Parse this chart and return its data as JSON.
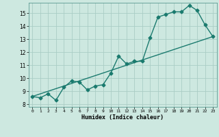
{
  "title": "",
  "xlabel": "Humidex (Indice chaleur)",
  "bg_color": "#cde8e0",
  "grid_color": "#aacdc5",
  "line_color": "#1a7a6e",
  "xlim": [
    -0.5,
    23.5
  ],
  "ylim": [
    7.8,
    15.8
  ],
  "yticks": [
    8,
    9,
    10,
    11,
    12,
    13,
    14,
    15
  ],
  "xticks": [
    0,
    1,
    2,
    3,
    4,
    5,
    6,
    7,
    8,
    9,
    10,
    11,
    12,
    13,
    14,
    15,
    16,
    17,
    18,
    19,
    20,
    21,
    22,
    23
  ],
  "curve1_x": [
    0,
    1,
    2,
    3,
    4,
    5,
    6,
    7,
    8,
    9,
    10,
    11,
    12,
    13,
    14,
    15,
    16,
    17,
    18,
    19,
    20,
    21,
    22,
    23
  ],
  "curve1_y": [
    8.6,
    8.5,
    8.8,
    8.3,
    9.3,
    9.8,
    9.7,
    9.1,
    9.4,
    9.5,
    10.4,
    11.7,
    11.1,
    11.3,
    11.3,
    13.1,
    14.7,
    14.9,
    15.1,
    15.1,
    15.6,
    15.2,
    14.1,
    13.2
  ],
  "curve2_x": [
    0,
    23
  ],
  "curve2_y": [
    8.6,
    13.2
  ],
  "markersize": 2.5,
  "linewidth": 1.0
}
